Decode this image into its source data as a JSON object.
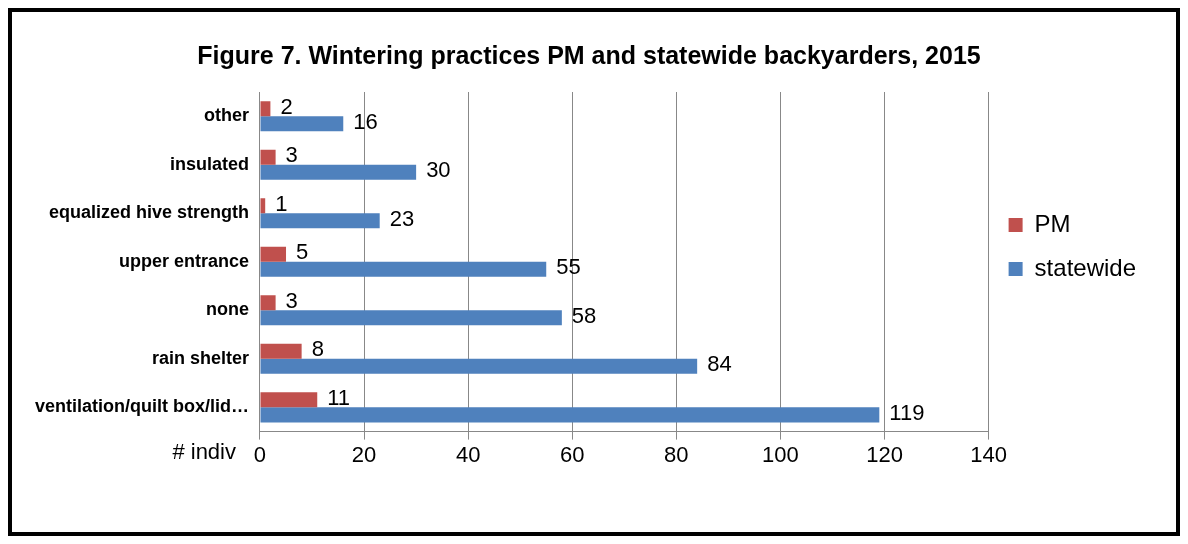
{
  "chart_data": {
    "type": "bar",
    "orientation": "horizontal",
    "title": "Figure 7. Wintering practices PM and statewide backyarders, 2015",
    "xlabel": "# indiv",
    "categories": [
      "other",
      "insulated",
      "equalized hive strength",
      "upper entrance",
      "none",
      "rain shelter",
      "ventilation/quilt box/lid…"
    ],
    "series": [
      {
        "name": "PM",
        "color": "#c0504d",
        "values": [
          2,
          3,
          1,
          5,
          3,
          8,
          11
        ]
      },
      {
        "name": "statewide",
        "color": "#4f81bd",
        "values": [
          16,
          30,
          23,
          55,
          58,
          84,
          119
        ]
      }
    ],
    "xlim": [
      0,
      140
    ],
    "xticks": [
      0,
      20,
      40,
      60,
      80,
      100,
      120,
      140
    ],
    "grid": "x",
    "legend": "right",
    "data_labels": true
  }
}
